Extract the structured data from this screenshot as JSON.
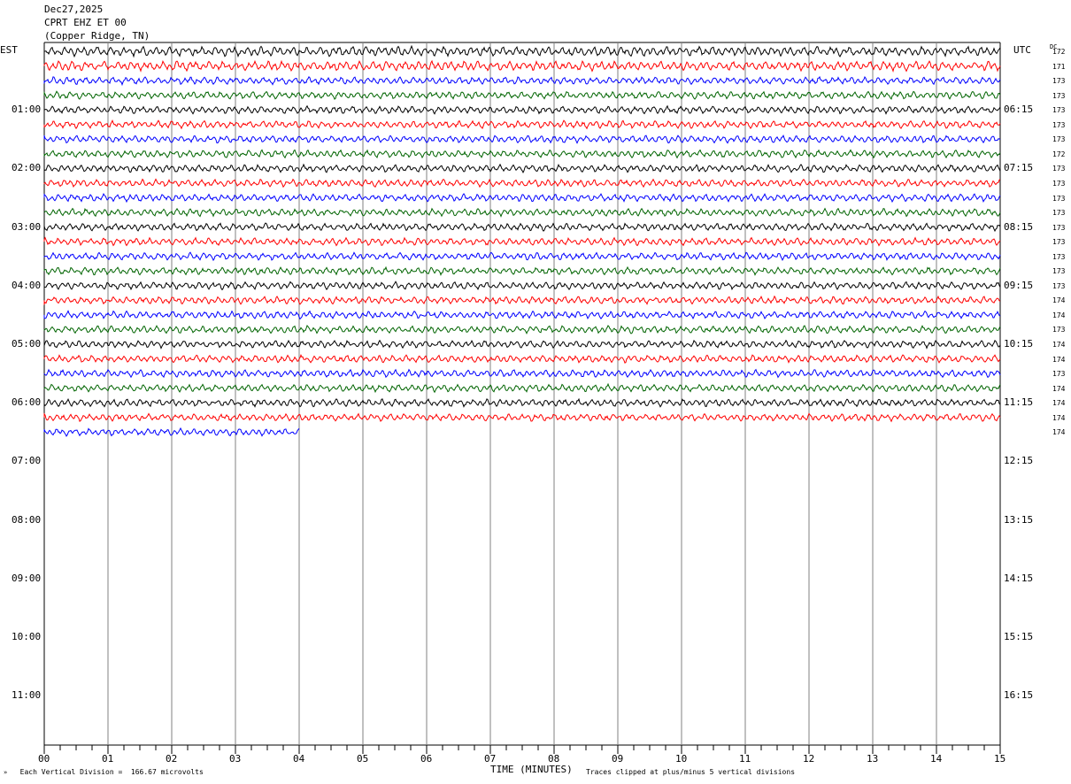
{
  "header": {
    "date": "Dec27,2025",
    "station": "CPRT EHZ ET 00",
    "location": "(Copper Ridge, TN)"
  },
  "chart_data": {
    "type": "line",
    "title": "",
    "left_label": "EST",
    "right_label": "UTC",
    "dc_label": "DC",
    "xlabel": "TIME (MINUTES)",
    "x_ticks": [
      "00",
      "01",
      "02",
      "03",
      "04",
      "05",
      "06",
      "07",
      "08",
      "09",
      "10",
      "11",
      "12",
      "13",
      "14",
      "15"
    ],
    "xlim": [
      0,
      15
    ],
    "est_hour_labels": [
      "01:00",
      "02:00",
      "03:00",
      "04:00",
      "05:00",
      "06:00",
      "07:00",
      "08:00",
      "09:00",
      "10:00",
      "11:00"
    ],
    "utc_hour_labels": [
      "06:15",
      "07:15",
      "08:15",
      "09:15",
      "10:15",
      "11:15",
      "12:15",
      "13:15",
      "14:15",
      "15:15",
      "16:15"
    ],
    "total_rows": 48,
    "trace_colors": [
      "#000000",
      "#ff0000",
      "#0000ff",
      "#006400"
    ],
    "dc_offsets": [
      172,
      171,
      173,
      173,
      173,
      173,
      173,
      172,
      173,
      173,
      173,
      173,
      173,
      173,
      173,
      173,
      173,
      174,
      174,
      173,
      174,
      174,
      173,
      174,
      174,
      174,
      174
    ],
    "last_trace_minutes": 4.0,
    "footer_left": "Each Vertical Division =  166.67 microvolts",
    "footer_right": "Traces clipped at plus/minus 5 vertical divisions"
  }
}
